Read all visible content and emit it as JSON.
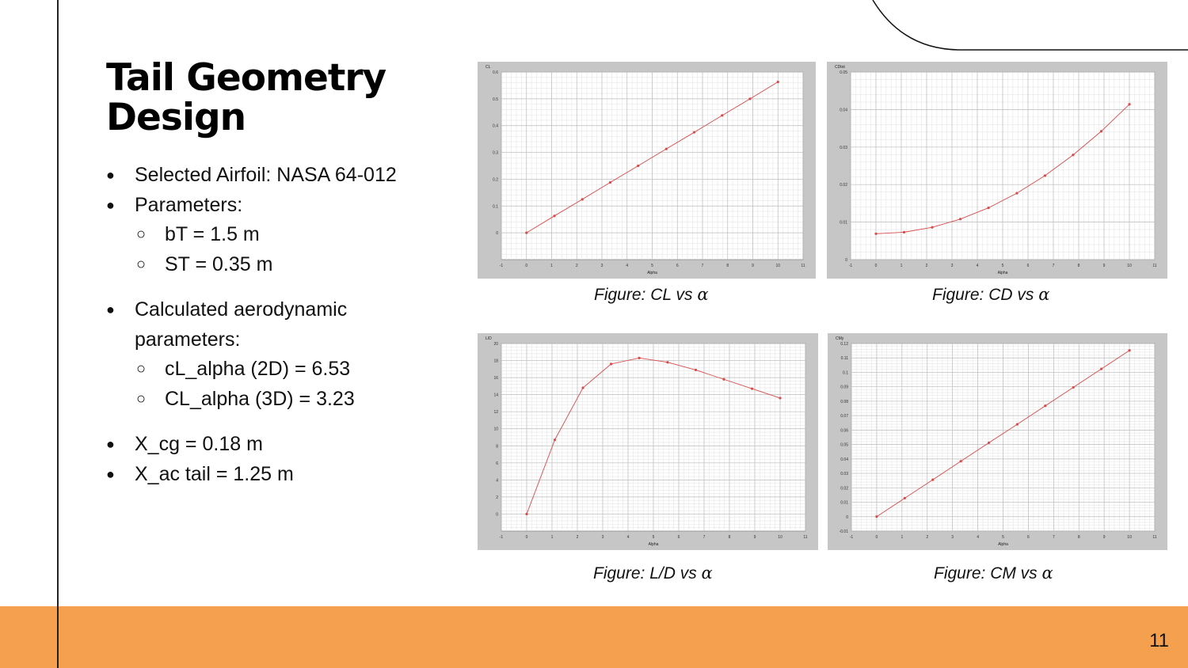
{
  "slide": {
    "title": "Tail Geometry Design",
    "page_number": "11",
    "accent_color": "#f5a04e"
  },
  "bullets": {
    "airfoil": "Selected Airfoil: NASA 64-012",
    "parameters": "Parameters:",
    "bT": "bT = 1.5 m",
    "ST": "ST = 0.35 m",
    "calc": "Calculated aerodynamic parameters:",
    "cl_alpha_2d": "cL_alpha (2D) = 6.53",
    "cl_alpha_3d": "CL_alpha (3D) = 3.23",
    "x_cg": "X_cg = 0.18 m",
    "x_ac": "X_ac tail = 1.25 m"
  },
  "chart_data": [
    {
      "type": "line",
      "ylabel": "CL",
      "xlabel": "Alpha",
      "caption_prefix": "Figure: CL vs ",
      "caption_symbol": "α",
      "xlim": [
        -1,
        11
      ],
      "ylim": [
        -0.1,
        0.6
      ],
      "xticks": [
        "-1",
        "0",
        "1",
        "2",
        "3",
        "4",
        "5",
        "6",
        "7",
        "8",
        "9",
        "10",
        "11"
      ],
      "yticks": [
        "0",
        "0.1",
        "0.2",
        "0.3",
        "0.4",
        "0.5",
        "0.6"
      ],
      "x": [
        0,
        1.11,
        2.22,
        3.33,
        4.44,
        5.56,
        6.67,
        7.78,
        8.89,
        10
      ],
      "y": [
        0,
        0.063,
        0.125,
        0.188,
        0.25,
        0.313,
        0.375,
        0.438,
        0.5,
        0.563
      ],
      "grid": true,
      "line_color": "#d94b4b"
    },
    {
      "type": "line",
      "ylabel": "CDtot",
      "xlabel": "Alpha",
      "caption_prefix": "Figure: CD vs ",
      "caption_symbol": "α",
      "xlim": [
        -1,
        11
      ],
      "ylim": [
        0,
        0.05
      ],
      "xticks": [
        "-1",
        "0",
        "1",
        "2",
        "3",
        "4",
        "5",
        "6",
        "7",
        "8",
        "9",
        "10",
        "11"
      ],
      "yticks": [
        "0",
        "0.01",
        "0.02",
        "0.03",
        "0.04",
        "0.05"
      ],
      "x": [
        0,
        1.11,
        2.22,
        3.33,
        4.44,
        5.56,
        6.67,
        7.78,
        8.89,
        10
      ],
      "y": [
        0.0069,
        0.0073,
        0.0086,
        0.0108,
        0.0138,
        0.0177,
        0.0224,
        0.0279,
        0.0342,
        0.0414
      ],
      "grid": true,
      "line_color": "#d94b4b"
    },
    {
      "type": "line",
      "ylabel": "L/D",
      "xlabel": "Alpha",
      "caption_prefix": "Figure: L/D vs ",
      "caption_symbol": "α",
      "xlim": [
        -1,
        11
      ],
      "ylim": [
        -2,
        20
      ],
      "xticks": [
        "-1",
        "0",
        "1",
        "2",
        "3",
        "4",
        "5",
        "6",
        "7",
        "8",
        "9",
        "10",
        "11"
      ],
      "yticks": [
        "0",
        "2",
        "4",
        "6",
        "8",
        "10",
        "12",
        "14",
        "16",
        "18",
        "20"
      ],
      "x": [
        0,
        1.11,
        2.22,
        3.33,
        4.44,
        5.56,
        6.67,
        7.78,
        8.89,
        10
      ],
      "y": [
        0,
        8.7,
        14.8,
        17.6,
        18.3,
        17.8,
        16.9,
        15.8,
        14.7,
        13.6
      ],
      "grid": true,
      "line_color": "#d94b4b"
    },
    {
      "type": "line",
      "ylabel": "CMy",
      "xlabel": "Alpha",
      "caption_prefix": "Figure: CM vs ",
      "caption_symbol": "α",
      "xlim": [
        -1,
        11
      ],
      "ylim": [
        -0.01,
        0.12
      ],
      "xticks": [
        "-1",
        "0",
        "1",
        "2",
        "3",
        "4",
        "5",
        "6",
        "7",
        "8",
        "9",
        "10",
        "11"
      ],
      "yticks": [
        "-0.01",
        "0",
        "0.01",
        "0.02",
        "0.03",
        "0.04",
        "0.05",
        "0.06",
        "0.07",
        "0.08",
        "0.09",
        "0.1",
        "0.11",
        "0.12"
      ],
      "x": [
        0,
        1.11,
        2.22,
        3.33,
        4.44,
        5.56,
        6.67,
        7.78,
        8.89,
        10
      ],
      "y": [
        0,
        0.0128,
        0.0256,
        0.0384,
        0.0512,
        0.064,
        0.0768,
        0.0896,
        0.1024,
        0.1152
      ],
      "grid": true,
      "line_color": "#d94b4b"
    }
  ]
}
